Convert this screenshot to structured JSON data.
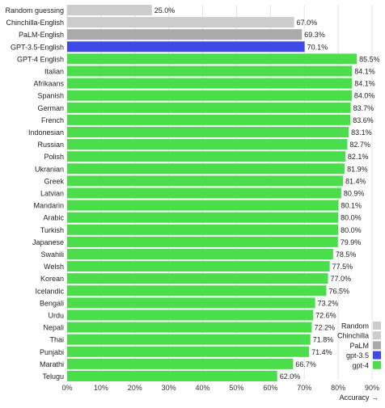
{
  "chart_data": {
    "type": "bar",
    "orientation": "horizontal",
    "xlabel": "Accuracy →",
    "xlim": [
      0,
      90
    ],
    "xticks": [
      "0%",
      "10%",
      "20%",
      "30%",
      "40%",
      "50%",
      "60%",
      "70%",
      "80%",
      "90%"
    ],
    "grid": true,
    "legend_position": "bottom-right",
    "series": [
      {
        "name": "Random",
        "color": "#cccccc"
      },
      {
        "name": "Chinchilla",
        "color": "#cccccc"
      },
      {
        "name": "PaLM",
        "color": "#aaaaaa"
      },
      {
        "name": "gpt-3.5",
        "color": "#3f49e8"
      },
      {
        "name": "gpt-4",
        "color": "#4cdd4c"
      }
    ],
    "bars": [
      {
        "label": "Random guessing",
        "value": 25.0,
        "value_label": "25.0%",
        "series": "Random"
      },
      {
        "label": "Chinchilla-English",
        "value": 67.0,
        "value_label": "67.0%",
        "series": "Chinchilla"
      },
      {
        "label": "PaLM-English",
        "value": 69.3,
        "value_label": "69.3%",
        "series": "PaLM"
      },
      {
        "label": "GPT-3.5-English",
        "value": 70.1,
        "value_label": "70.1%",
        "series": "gpt-3.5"
      },
      {
        "label": "GPT-4 English",
        "value": 85.5,
        "value_label": "85.5%",
        "series": "gpt-4"
      },
      {
        "label": "Italian",
        "value": 84.1,
        "value_label": "84.1%",
        "series": "gpt-4"
      },
      {
        "label": "Afrikaans",
        "value": 84.1,
        "value_label": "84.1%",
        "series": "gpt-4"
      },
      {
        "label": "Spanish",
        "value": 84.0,
        "value_label": "84.0%",
        "series": "gpt-4"
      },
      {
        "label": "German",
        "value": 83.7,
        "value_label": "83.7%",
        "series": "gpt-4"
      },
      {
        "label": "French",
        "value": 83.6,
        "value_label": "83.6%",
        "series": "gpt-4"
      },
      {
        "label": "Indonesian",
        "value": 83.1,
        "value_label": "83.1%",
        "series": "gpt-4"
      },
      {
        "label": "Russian",
        "value": 82.7,
        "value_label": "82.7%",
        "series": "gpt-4"
      },
      {
        "label": "Polish",
        "value": 82.1,
        "value_label": "82.1%",
        "series": "gpt-4"
      },
      {
        "label": "Ukranian",
        "value": 81.9,
        "value_label": "81.9%",
        "series": "gpt-4"
      },
      {
        "label": "Greek",
        "value": 81.4,
        "value_label": "81.4%",
        "series": "gpt-4"
      },
      {
        "label": "Latvian",
        "value": 80.9,
        "value_label": "80.9%",
        "series": "gpt-4"
      },
      {
        "label": "Mandarin",
        "value": 80.1,
        "value_label": "80.1%",
        "series": "gpt-4"
      },
      {
        "label": "Arabic",
        "value": 80.0,
        "value_label": "80.0%",
        "series": "gpt-4"
      },
      {
        "label": "Turkish",
        "value": 80.0,
        "value_label": "80.0%",
        "series": "gpt-4"
      },
      {
        "label": "Japanese",
        "value": 79.9,
        "value_label": "79.9%",
        "series": "gpt-4"
      },
      {
        "label": "Swahili",
        "value": 78.5,
        "value_label": "78.5%",
        "series": "gpt-4"
      },
      {
        "label": "Welsh",
        "value": 77.5,
        "value_label": "77.5%",
        "series": "gpt-4"
      },
      {
        "label": "Korean",
        "value": 77.0,
        "value_label": "77.0%",
        "series": "gpt-4"
      },
      {
        "label": "Icelandic",
        "value": 76.5,
        "value_label": "76.5%",
        "series": "gpt-4"
      },
      {
        "label": "Bengali",
        "value": 73.2,
        "value_label": "73.2%",
        "series": "gpt-4"
      },
      {
        "label": "Urdu",
        "value": 72.6,
        "value_label": "72.6%",
        "series": "gpt-4"
      },
      {
        "label": "Nepali",
        "value": 72.2,
        "value_label": "72.2%",
        "series": "gpt-4"
      },
      {
        "label": "Thai",
        "value": 71.8,
        "value_label": "71.8%",
        "series": "gpt-4"
      },
      {
        "label": "Punjabi",
        "value": 71.4,
        "value_label": "71.4%",
        "series": "gpt-4"
      },
      {
        "label": "Marathi",
        "value": 66.7,
        "value_label": "66.7%",
        "series": "gpt-4"
      },
      {
        "label": "Telugu",
        "value": 62.0,
        "value_label": "62.0%",
        "series": "gpt-4"
      }
    ]
  }
}
